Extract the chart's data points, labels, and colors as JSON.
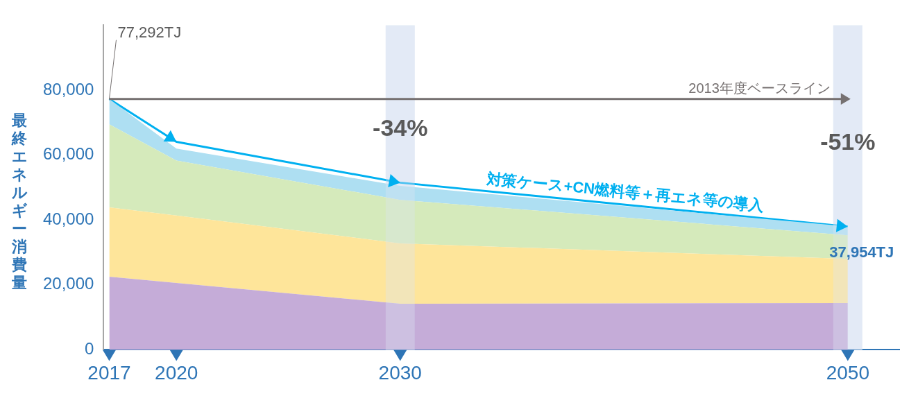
{
  "chart_data": {
    "type": "area",
    "stacked": true,
    "ylabel": "最終エネルギー消費量",
    "x": [
      2017,
      2020,
      2030,
      2050
    ],
    "xlim": [
      2016.75,
      2052.3
    ],
    "xticks": [
      2017,
      2020,
      2030,
      2050
    ],
    "ylim": [
      0,
      100000
    ],
    "yticks": [
      0,
      {
        "value": 20000,
        "label": "20,000"
      },
      {
        "value": 40000,
        "label": "40,000"
      },
      {
        "value": 60000,
        "label": "60,000"
      },
      {
        "value": 80000,
        "label": "80,000"
      }
    ],
    "grid": false,
    "legend": false,
    "series": [
      {
        "color": "#c5acd8",
        "values": [
          22500,
          20600,
          14200,
          14400
        ]
      },
      {
        "color": "#fee59a",
        "values": [
          21400,
          20800,
          18600,
          13600
        ]
      },
      {
        "color": "#d5eabb",
        "values": [
          25600,
          16900,
          13400,
          7300
        ]
      },
      {
        "color": "#aedff2",
        "values": [
          7800,
          3700,
          4300,
          2700
        ]
      },
      {
        "type": "line",
        "name": "対策ケース+CN燃料等＋再エネ等の導入",
        "color": "#00b0f0",
        "values": [
          77292,
          64100,
          51500,
          37954
        ],
        "value_labels": [
          "77,292TJ",
          null,
          null,
          "37,954TJ"
        ]
      }
    ],
    "ref_lines": [
      {
        "axis": "y",
        "value": 77292,
        "label": "2013年度ベースライン",
        "color": "#767171"
      }
    ],
    "bands": [
      {
        "axis": "x",
        "from": 2029.35,
        "to": 2030.65,
        "color": "#dce6f4"
      },
      {
        "axis": "x",
        "from": 2049.35,
        "to": 2050.65,
        "color": "#dce6f4"
      }
    ],
    "annotations": [
      "-34%",
      "-51%"
    ]
  }
}
